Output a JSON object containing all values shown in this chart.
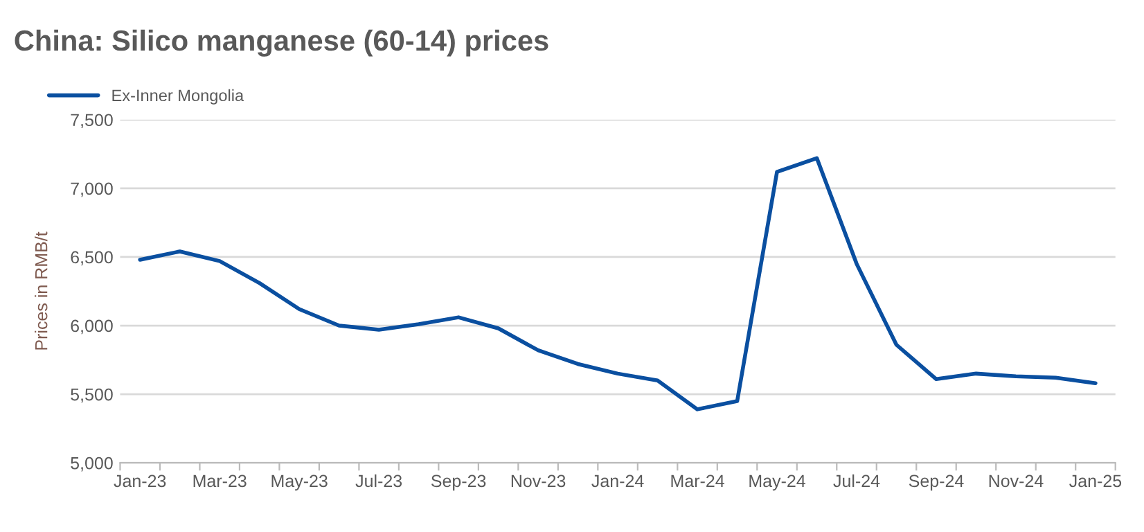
{
  "chart_data": {
    "type": "line",
    "title": "China: Silico manganese (60-14) prices",
    "ylabel": "Prices in RMB/t",
    "categories": [
      "Jan-23",
      null,
      "Mar-23",
      null,
      "May-23",
      null,
      "Jul-23",
      null,
      "Sep-23",
      null,
      "Nov-23",
      null,
      "Jan-24",
      null,
      "Mar-24",
      null,
      "May-24",
      null,
      "Jul-24",
      null,
      "Sep-24",
      null,
      "Nov-24",
      null,
      "Jan-25"
    ],
    "series": [
      {
        "name": "Ex-Inner Mongolia",
        "color": "#0a4fa0",
        "values": [
          6480,
          6540,
          6470,
          6310,
          6120,
          6000,
          5970,
          6010,
          6060,
          5980,
          5820,
          5720,
          5650,
          5600,
          5390,
          5450,
          7120,
          7220,
          6450,
          5860,
          5610,
          5650,
          5630,
          5620,
          5580
        ]
      }
    ],
    "ylim": [
      5000,
      7500
    ],
    "yticks": [
      {
        "value": 5000,
        "label": "5,000"
      },
      {
        "value": 5500,
        "label": "5,500"
      },
      {
        "value": 6000,
        "label": "6,000"
      },
      {
        "value": 6500,
        "label": "6,500"
      },
      {
        "value": 7000,
        "label": "7,000"
      },
      {
        "value": 7500,
        "label": "7,500"
      }
    ],
    "grid": "y",
    "legend": "top left",
    "marker": "none",
    "line_style": "solid"
  }
}
